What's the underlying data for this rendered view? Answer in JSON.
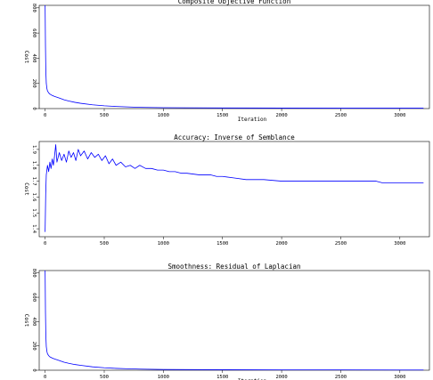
{
  "chart_data": [
    {
      "type": "line",
      "title": "Composite Objective Function",
      "xlabel": "Iteration",
      "ylabel": "Cost",
      "xlim": [
        -50,
        3250
      ],
      "ylim": [
        0,
        820
      ],
      "x_ticks": [
        0,
        500,
        1000,
        1500,
        2000,
        2500,
        3000
      ],
      "y_ticks": [
        0,
        200,
        400,
        600,
        800
      ],
      "series_color": "#0000ff",
      "series": [
        {
          "x": [
            0,
            3,
            6,
            10,
            15,
            20,
            30,
            40,
            50,
            60,
            80,
            100,
            130,
            160,
            200,
            250,
            300,
            400,
            500,
            600,
            700,
            800,
            1000,
            1200,
            1500,
            2000,
            2500,
            3000,
            3200
          ],
          "values": [
            820,
            500,
            300,
            200,
            160,
            140,
            125,
            115,
            110,
            104,
            96,
            90,
            80,
            70,
            60,
            50,
            42,
            30,
            22,
            17,
            13,
            10,
            7,
            6,
            5,
            4,
            3,
            3,
            3
          ]
        }
      ]
    },
    {
      "type": "line",
      "title": "Accuracy: Inverse of Semblance",
      "xlabel": "",
      "ylabel": "Cost",
      "xlim": [
        -50,
        3250
      ],
      "ylim": [
        1.35,
        1.95
      ],
      "x_ticks": [
        0,
        500,
        1000,
        1500,
        2000,
        2500,
        3000
      ],
      "y_ticks": [
        1.4,
        1.5,
        1.6,
        1.7,
        1.8,
        1.9
      ],
      "y_tick_labels": [
        "1.4",
        "1.5",
        "1.6",
        "1.7",
        "1.8",
        "1.9"
      ],
      "series_color": "#0000ff",
      "series": [
        {
          "x": [
            0,
            5,
            10,
            20,
            30,
            40,
            50,
            60,
            70,
            80,
            90,
            100,
            120,
            140,
            160,
            180,
            200,
            220,
            240,
            260,
            280,
            300,
            330,
            360,
            390,
            420,
            450,
            480,
            510,
            540,
            570,
            600,
            640,
            680,
            720,
            760,
            800,
            850,
            900,
            950,
            1000,
            1050,
            1100,
            1150,
            1200,
            1300,
            1400,
            1450,
            1500,
            1600,
            1700,
            1850,
            2000,
            2200,
            2500,
            2800,
            2850,
            3000,
            3200
          ],
          "values": [
            1.38,
            1.62,
            1.74,
            1.8,
            1.76,
            1.82,
            1.78,
            1.84,
            1.8,
            1.86,
            1.93,
            1.82,
            1.88,
            1.83,
            1.87,
            1.82,
            1.89,
            1.85,
            1.88,
            1.83,
            1.9,
            1.86,
            1.89,
            1.84,
            1.88,
            1.85,
            1.87,
            1.83,
            1.86,
            1.81,
            1.84,
            1.8,
            1.82,
            1.79,
            1.8,
            1.78,
            1.8,
            1.78,
            1.78,
            1.77,
            1.77,
            1.76,
            1.76,
            1.75,
            1.75,
            1.74,
            1.74,
            1.73,
            1.73,
            1.72,
            1.71,
            1.71,
            1.7,
            1.7,
            1.7,
            1.7,
            1.69,
            1.69,
            1.69
          ]
        }
      ]
    },
    {
      "type": "line",
      "title": "Smoothness: Residual of Laplacian",
      "xlabel": "Iteration",
      "ylabel": "Cost",
      "xlim": [
        -50,
        3250
      ],
      "ylim": [
        0,
        820
      ],
      "x_ticks": [
        0,
        500,
        1000,
        1500,
        2000,
        2500,
        3000
      ],
      "y_ticks": [
        0,
        200,
        400,
        600,
        800
      ],
      "series_color": "#0000ff",
      "series": [
        {
          "x": [
            0,
            3,
            6,
            10,
            15,
            20,
            30,
            40,
            50,
            60,
            80,
            100,
            130,
            160,
            200,
            250,
            300,
            400,
            500,
            600,
            700,
            800,
            1000,
            1200,
            1500,
            2000,
            2500,
            3000,
            3200
          ],
          "values": [
            820,
            480,
            290,
            195,
            155,
            135,
            120,
            110,
            105,
            100,
            92,
            86,
            76,
            66,
            57,
            47,
            40,
            28,
            20,
            15,
            12,
            9,
            6,
            5,
            4,
            3,
            3,
            2,
            2
          ]
        }
      ]
    }
  ]
}
